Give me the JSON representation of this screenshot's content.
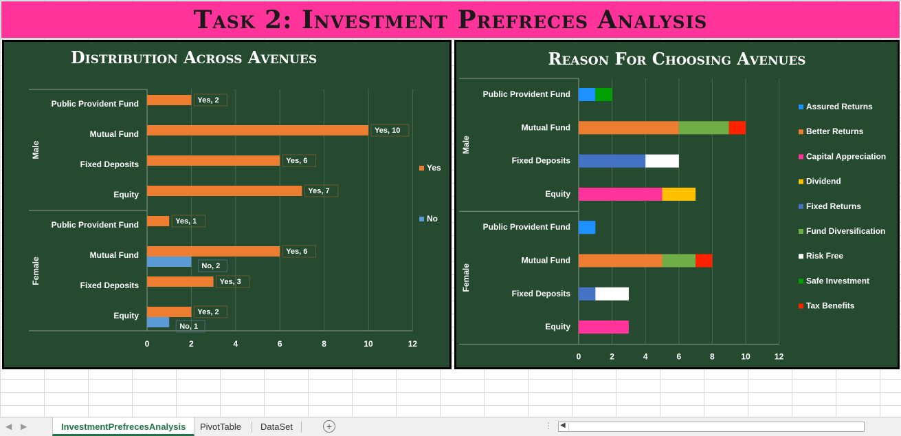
{
  "title": "Task 2: Investment Prefreces Analysis",
  "colors": {
    "yes": "#ed7d31",
    "no": "#5b9bd5",
    "assured": "#1e90ff",
    "better": "#ed7d31",
    "capital": "#ff3399",
    "dividend": "#ffc000",
    "fixedret": "#4472c4",
    "diversification": "#70ad47",
    "riskfree": "#ffffff",
    "safe": "#00a000",
    "tax": "#ff2200"
  },
  "charts": {
    "left": {
      "title": "Distribution Across Avenues",
      "groups": [
        "Male",
        "Female"
      ],
      "categories": [
        "Public Provident Fund",
        "Mutual Fund",
        "Fixed Deposits",
        "Equity"
      ],
      "ticks": [
        "0",
        "2",
        "4",
        "6",
        "8",
        "10",
        "12"
      ],
      "legend": [
        "Yes",
        "No"
      ]
    },
    "right": {
      "title": "Reason For Choosing Avenues",
      "groups": [
        "Male",
        "Female"
      ],
      "categories": [
        "Public Provident Fund",
        "Mutual Fund",
        "Fixed Deposits",
        "Equity"
      ],
      "ticks": [
        "0",
        "2",
        "4",
        "6",
        "8",
        "10",
        "12"
      ],
      "legend": [
        "Assured Returns",
        "Better Returns",
        "Capital Appreciation",
        "Dividend",
        "Fixed Returns",
        "Fund Diversification",
        "Risk Free",
        "Safe Investment",
        "Tax Benefits"
      ]
    }
  },
  "chart_data": [
    {
      "type": "bar",
      "orientation": "horizontal",
      "title": "Distribution Across Avenues",
      "categories": [
        "Male - Public Provident Fund",
        "Male - Mutual Fund",
        "Male - Fixed Deposits",
        "Male - Equity",
        "Female - Public Provident Fund",
        "Female - Mutual Fund",
        "Female - Fixed Deposits",
        "Female - Equity"
      ],
      "series": [
        {
          "name": "Yes",
          "values": [
            2,
            10,
            6,
            7,
            1,
            6,
            3,
            2
          ]
        },
        {
          "name": "No",
          "values": [
            0,
            0,
            0,
            0,
            0,
            2,
            0,
            1
          ]
        }
      ],
      "data_labels": [
        "Yes, 2",
        "Yes, 10",
        "Yes, 6",
        "Yes, 7",
        "Yes, 1",
        "Yes, 6",
        "No, 2",
        "Yes, 3",
        "Yes, 2",
        "No, 1"
      ],
      "xlim": [
        0,
        12
      ],
      "grid": true,
      "legend": "right"
    },
    {
      "type": "bar",
      "orientation": "horizontal",
      "stacked": true,
      "title": "Reason For Choosing Avenues",
      "categories": [
        "Male - Public Provident Fund",
        "Male - Mutual Fund",
        "Male - Fixed Deposits",
        "Male - Equity",
        "Female - Public Provident Fund",
        "Female - Mutual Fund",
        "Female - Fixed Deposits",
        "Female - Equity"
      ],
      "series": [
        {
          "name": "Assured Returns",
          "values": [
            1,
            0,
            0,
            0,
            1,
            0,
            0,
            0
          ]
        },
        {
          "name": "Better Returns",
          "values": [
            0,
            6,
            0,
            0,
            0,
            5,
            0,
            0
          ]
        },
        {
          "name": "Capital Appreciation",
          "values": [
            0,
            0,
            0,
            5,
            0,
            0,
            0,
            3
          ]
        },
        {
          "name": "Dividend",
          "values": [
            0,
            0,
            0,
            2,
            0,
            0,
            0,
            0
          ]
        },
        {
          "name": "Fixed Returns",
          "values": [
            0,
            0,
            4,
            0,
            0,
            0,
            1,
            0
          ]
        },
        {
          "name": "Fund Diversification",
          "values": [
            0,
            3,
            0,
            0,
            0,
            2,
            0,
            0
          ]
        },
        {
          "name": "Risk Free",
          "values": [
            0,
            0,
            2,
            0,
            0,
            0,
            2,
            0
          ]
        },
        {
          "name": "Safe Investment",
          "values": [
            1,
            0,
            0,
            0,
            0,
            0,
            0,
            0
          ]
        },
        {
          "name": "Tax Benefits",
          "values": [
            0,
            1,
            0,
            0,
            0,
            1,
            0,
            0
          ]
        }
      ],
      "xlim": [
        0,
        12
      ],
      "grid": true,
      "legend": "right"
    }
  ],
  "tabs": {
    "active": "InvestmentPrefrecesAnalysis",
    "t2": "PivotTable",
    "t3": "DataSet",
    "add": "+"
  }
}
